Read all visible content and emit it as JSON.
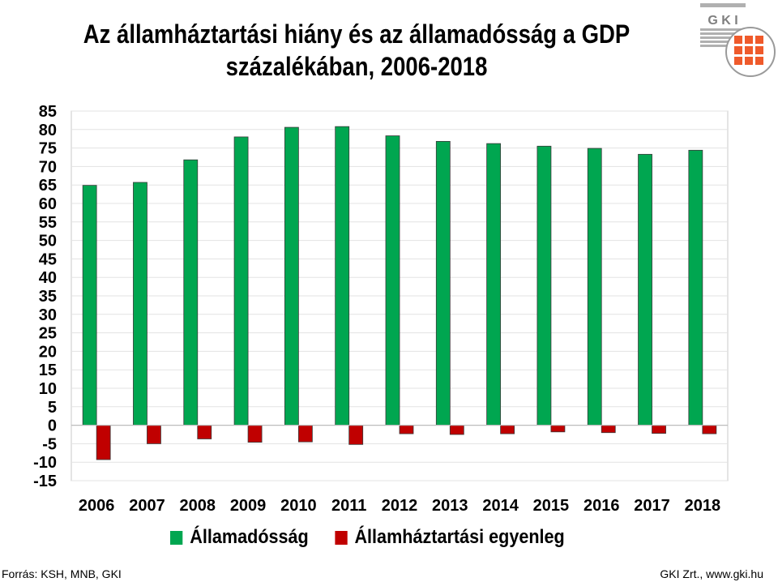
{
  "chart_data": {
    "type": "bar",
    "title": "Az államháztartási hiány és az államadósság a GDP",
    "subtitle": "százalékában, 2006-2018",
    "categories": [
      "2006",
      "2007",
      "2008",
      "2009",
      "2010",
      "2011",
      "2012",
      "2013",
      "2014",
      "2015",
      "2016",
      "2017",
      "2018"
    ],
    "series": [
      {
        "name": "Államadósság",
        "color": "#00a650",
        "values": [
          64.9,
          65.7,
          71.8,
          78.0,
          80.6,
          80.8,
          78.3,
          76.8,
          76.2,
          75.5,
          74.9,
          73.3,
          74.4
        ]
      },
      {
        "name": "Államháztartási egyenleg",
        "color": "#c00000",
        "values": [
          -9.3,
          -5.0,
          -3.7,
          -4.6,
          -4.5,
          -5.2,
          -2.3,
          -2.5,
          -2.3,
          -1.8,
          -2.0,
          -2.2,
          -2.3
        ]
      }
    ],
    "ylim": [
      -15,
      85
    ],
    "yticks": [
      -15,
      -10,
      -5,
      0,
      5,
      10,
      15,
      20,
      25,
      30,
      35,
      40,
      45,
      50,
      55,
      60,
      65,
      70,
      75,
      80,
      85
    ],
    "grid": true,
    "legend": "bottom"
  },
  "logo": {
    "text": "G K I"
  },
  "footer": {
    "source": "Forrás: KSH, MNB, GKI",
    "credit": "GKI Zrt., www.gki.hu"
  }
}
